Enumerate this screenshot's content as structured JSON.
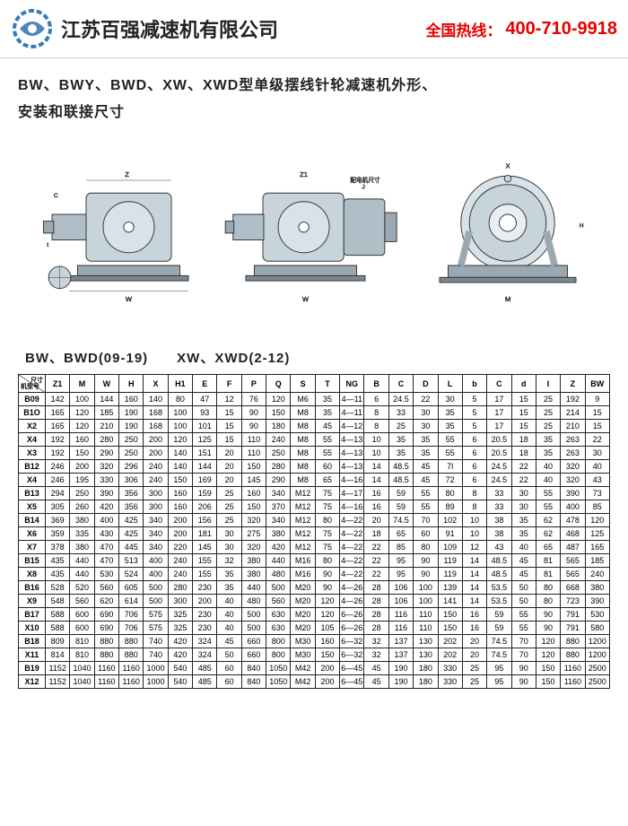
{
  "header": {
    "company": "江苏百强减速机有限公司",
    "hotline_label": "全国热线：",
    "hotline_number": "400-710-9918"
  },
  "title_line1": "BW、BWY、BWD、XW、XWD型单级摆线针轮减速机外形、",
  "title_line2": "安装和联接尺寸",
  "subheading": "BW、BWD(09-19)　　XW、XWD(2-12)",
  "table": {
    "header_topright": "尺寸",
    "header_bottomleft": "机型号",
    "columns": [
      "",
      "Z1",
      "M",
      "W",
      "H",
      "X",
      "H1",
      "E",
      "F",
      "P",
      "Q",
      "S",
      "T",
      "NG",
      "B",
      "C",
      "D",
      "L",
      "b",
      "C",
      "d",
      "I",
      "Z",
      "BW"
    ],
    "rows": [
      [
        "B09",
        "142",
        "100",
        "144",
        "160",
        "140",
        "80",
        "47",
        "12",
        "76",
        "120",
        "M6",
        "35",
        "4—11",
        "6",
        "24.5",
        "22",
        "30",
        "5",
        "17",
        "15",
        "25",
        "192",
        "9"
      ],
      [
        "B1O",
        "165",
        "120",
        "185",
        "190",
        "168",
        "100",
        "93",
        "15",
        "90",
        "150",
        "M8",
        "35",
        "4—11",
        "8",
        "33",
        "30",
        "35",
        "5",
        "17",
        "15",
        "25",
        "214",
        "15"
      ],
      [
        "X2",
        "165",
        "120",
        "210",
        "190",
        "168",
        "100",
        "101",
        "15",
        "90",
        "180",
        "M8",
        "45",
        "4—12",
        "8",
        "25",
        "30",
        "35",
        "5",
        "17",
        "15",
        "25",
        "210",
        "15"
      ],
      [
        "X4",
        "192",
        "160",
        "280",
        "250",
        "200",
        "120",
        "125",
        "15",
        "110",
        "240",
        "M8",
        "55",
        "4—13",
        "10",
        "35",
        "35",
        "55",
        "6",
        "20.5",
        "18",
        "35",
        "263",
        "22"
      ],
      [
        "X3",
        "192",
        "150",
        "290",
        "250",
        "200",
        "140",
        "151",
        "20",
        "110",
        "250",
        "M8",
        "55",
        "4—13",
        "10",
        "35",
        "35",
        "55",
        "6",
        "20.5",
        "18",
        "35",
        "263",
        "30"
      ],
      [
        "B12",
        "246",
        "200",
        "320",
        "296",
        "240",
        "140",
        "144",
        "20",
        "150",
        "280",
        "M8",
        "60",
        "4—13",
        "14",
        "48.5",
        "45",
        "7l",
        "6",
        "24.5",
        "22",
        "40",
        "320",
        "40"
      ],
      [
        "X4",
        "246",
        "195",
        "330",
        "306",
        "240",
        "150",
        "169",
        "20",
        "145",
        "290",
        "M8",
        "65",
        "4—16",
        "14",
        "48.5",
        "45",
        "72",
        "6",
        "24.5",
        "22",
        "40",
        "320",
        "43"
      ],
      [
        "B13",
        "294",
        "250",
        "390",
        "356",
        "300",
        "160",
        "159",
        "25",
        "160",
        "340",
        "M12",
        "75",
        "4—17",
        "16",
        "59",
        "55",
        "80",
        "8",
        "33",
        "30",
        "55",
        "390",
        "73"
      ],
      [
        "X5",
        "305",
        "260",
        "420",
        "356",
        "300",
        "160",
        "206",
        "25",
        "150",
        "370",
        "M12",
        "75",
        "4—16",
        "16",
        "59",
        "55",
        "89",
        "8",
        "33",
        "30",
        "55",
        "400",
        "85"
      ],
      [
        "B14",
        "369",
        "380",
        "400",
        "425",
        "340",
        "200",
        "156",
        "25",
        "320",
        "340",
        "M12",
        "80",
        "4—22",
        "20",
        "74.5",
        "70",
        "102",
        "10",
        "38",
        "35",
        "62",
        "478",
        "120"
      ],
      [
        "X6",
        "359",
        "335",
        "430",
        "425",
        "340",
        "200",
        "181",
        "30",
        "275",
        "380",
        "M12",
        "75",
        "4—22",
        "18",
        "65",
        "60",
        "91",
        "10",
        "38",
        "35",
        "62",
        "468",
        "125"
      ],
      [
        "X7",
        "378",
        "380",
        "470",
        "445",
        "340",
        "220",
        "145",
        "30",
        "320",
        "420",
        "M12",
        "75",
        "4—22",
        "22",
        "85",
        "80",
        "109",
        "12",
        "43",
        "40",
        "65",
        "487",
        "165"
      ],
      [
        "B15",
        "435",
        "440",
        "470",
        "513",
        "400",
        "240",
        "155",
        "32",
        "380",
        "440",
        "M16",
        "80",
        "4—22",
        "22",
        "95",
        "90",
        "119",
        "14",
        "48.5",
        "45",
        "81",
        "565",
        "185"
      ],
      [
        "X8",
        "435",
        "440",
        "530",
        "524",
        "400",
        "240",
        "155",
        "35",
        "380",
        "480",
        "M16",
        "90",
        "4—22",
        "22",
        "95",
        "90",
        "119",
        "14",
        "48.5",
        "45",
        "81",
        "565",
        "240"
      ],
      [
        "B16",
        "528",
        "520",
        "560",
        "605",
        "500",
        "280",
        "230",
        "35",
        "440",
        "500",
        "M20",
        "90",
        "4—26",
        "28",
        "106",
        "100",
        "139",
        "14",
        "53.5",
        "50",
        "80",
        "668",
        "380"
      ],
      [
        "X9",
        "548",
        "560",
        "620",
        "614",
        "500",
        "300",
        "200",
        "40",
        "480",
        "560",
        "M20",
        "120",
        "4—26",
        "28",
        "106",
        "100",
        "141",
        "14",
        "53.5",
        "50",
        "80",
        "723",
        "390"
      ],
      [
        "B17",
        "588",
        "600",
        "690",
        "706",
        "575",
        "325",
        "230",
        "40",
        "500",
        "630",
        "M20",
        "120",
        "6—26",
        "28",
        "116",
        "110",
        "150",
        "16",
        "59",
        "55",
        "90",
        "791",
        "530"
      ],
      [
        "X10",
        "588",
        "600",
        "690",
        "706",
        "575",
        "325",
        "230",
        "40",
        "500",
        "630",
        "M20",
        "105",
        "6—26",
        "28",
        "116",
        "110",
        "150",
        "16",
        "59",
        "55",
        "90",
        "791",
        "580"
      ],
      [
        "B18",
        "809",
        "810",
        "880",
        "880",
        "740",
        "420",
        "324",
        "45",
        "660",
        "800",
        "M30",
        "160",
        "6—32",
        "32",
        "137",
        "130",
        "202",
        "20",
        "74.5",
        "70",
        "120",
        "880",
        "1200"
      ],
      [
        "X11",
        "814",
        "810",
        "880",
        "880",
        "740",
        "420",
        "324",
        "50",
        "660",
        "800",
        "M30",
        "150",
        "6—32",
        "32",
        "137",
        "130",
        "202",
        "20",
        "74.5",
        "70",
        "120",
        "880",
        "1200"
      ],
      [
        "B19",
        "1152",
        "1040",
        "1160",
        "1160",
        "1000",
        "540",
        "485",
        "60",
        "840",
        "1050",
        "M42",
        "200",
        "6—45",
        "45",
        "190",
        "180",
        "330",
        "25",
        "95",
        "90",
        "150",
        "1160",
        "2500"
      ],
      [
        "X12",
        "1152",
        "1040",
        "1160",
        "1160",
        "1000",
        "540",
        "485",
        "60",
        "840",
        "1050",
        "M42",
        "200",
        "6—45",
        "45",
        "190",
        "180",
        "330",
        "25",
        "95",
        "90",
        "150",
        "1160",
        "2500"
      ]
    ]
  },
  "style": {
    "hotline_color": "#e60000",
    "logo_color": "#3a7ab5",
    "border_color": "#222222"
  }
}
